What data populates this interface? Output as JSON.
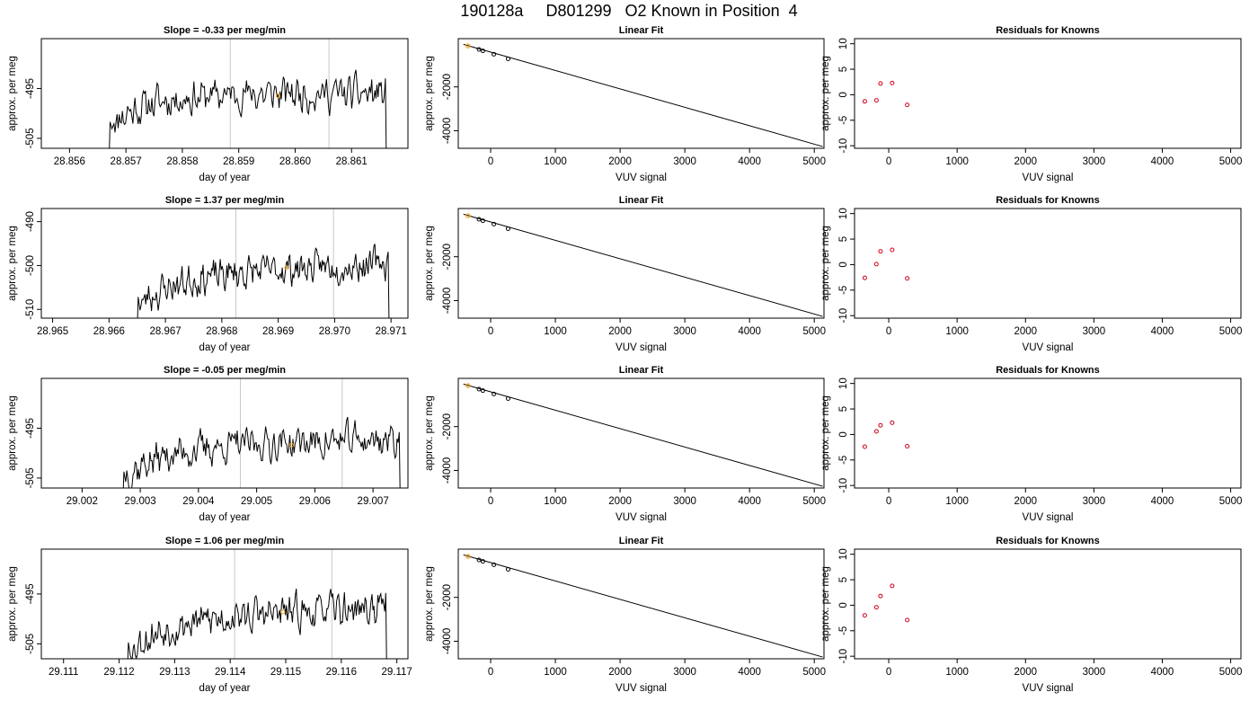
{
  "title": "190128a     D801299   O2 Known in Position  4",
  "colors": {
    "line": "#000000",
    "vline": "#c8c8c8",
    "highlight": "#f5a623",
    "residual": "#d0021b"
  },
  "rows": [
    {
      "time_panel": {
        "title": "Slope =  -0.33  per meg/min",
        "xlabel": "day of year",
        "ylabel": "approx. per meg",
        "xlim": [
          28.8555,
          28.862
        ],
        "ylim": [
          -507,
          -485
        ],
        "xticks": [
          28.856,
          28.857,
          28.858,
          28.859,
          28.86,
          28.861
        ],
        "xticklabels": [
          "28.856",
          "28.857",
          "28.858",
          "28.859",
          "28.860",
          "28.861"
        ],
        "yticks": [
          -495,
          -505
        ],
        "yticklabels": [
          "-495",
          "-505"
        ],
        "vlines": [
          28.85885,
          28.8606
        ],
        "start": 28.85675,
        "end": 28.8616,
        "level": -496,
        "amp": 2.6,
        "seed": 11,
        "marker": {
          "x": 28.8597,
          "y": -496.5
        }
      },
      "fit_panel": {
        "title": "Linear Fit",
        "xlabel": "VUV signal",
        "ylabel": "approx. per meg",
        "xlim": [
          -500,
          5150
        ],
        "ylim": [
          -4800,
          200
        ],
        "xticks": [
          0,
          1000,
          2000,
          3000,
          4000,
          5000
        ],
        "xticklabels": [
          "0",
          "1000",
          "2000",
          "3000",
          "4000",
          "5000"
        ],
        "yticks": [
          -2000,
          -4000
        ],
        "yticklabels": [
          "-2000",
          "-4000"
        ],
        "line": {
          "x": [
            -420,
            5130
          ],
          "y": [
            -60,
            -4720
          ]
        },
        "points": {
          "x": [
            -180,
            -120,
            50,
            270
          ],
          "y": [
            -290,
            -360,
            -510,
            -720
          ]
        },
        "highlight": {
          "x": -350,
          "y": -130
        }
      },
      "resid_panel": {
        "title": "Residuals for Knowns",
        "xlabel": "VUV signal",
        "ylabel": "approx. per meg",
        "xlim": [
          -500,
          5150
        ],
        "ylim": [
          -10.5,
          11
        ],
        "xticks": [
          0,
          1000,
          2000,
          3000,
          4000,
          5000
        ],
        "xticklabels": [
          "0",
          "1000",
          "2000",
          "3000",
          "4000",
          "5000"
        ],
        "yticks": [
          -10,
          -5,
          0,
          5,
          10
        ],
        "yticklabels": [
          "-10",
          "-5",
          "0",
          "5",
          "10"
        ],
        "points": {
          "x": [
            -350,
            -180,
            -120,
            50,
            270
          ],
          "y": [
            -1.3,
            -1.1,
            2.2,
            2.3,
            -2.0
          ]
        }
      }
    },
    {
      "time_panel": {
        "title": "Slope =  1.37  per meg/min",
        "xlabel": "day of year",
        "ylabel": "approx. per meg",
        "xlim": [
          28.9648,
          28.9713
        ],
        "ylim": [
          -512,
          -487
        ],
        "xticks": [
          28.965,
          28.966,
          28.967,
          28.968,
          28.969,
          28.97,
          28.971
        ],
        "xticklabels": [
          "28.965",
          "28.966",
          "28.967",
          "28.968",
          "28.969",
          "28.970",
          "28.971"
        ],
        "yticks": [
          -490,
          -500,
          -510
        ],
        "yticklabels": [
          "-490",
          "-500",
          "-510"
        ],
        "vlines": [
          28.96825,
          28.96998
        ],
        "start": 28.96655,
        "end": 28.97095,
        "level": -501,
        "amp": 2.8,
        "seed": 23,
        "trend": 3.2,
        "marker": {
          "x": 28.96915,
          "y": -500.5
        }
      },
      "fit_panel": {
        "title": "Linear Fit",
        "xlabel": "VUV signal",
        "ylabel": "approx. per meg",
        "xlim": [
          -500,
          5150
        ],
        "ylim": [
          -4800,
          200
        ],
        "xticks": [
          0,
          1000,
          2000,
          3000,
          4000,
          5000
        ],
        "xticklabels": [
          "0",
          "1000",
          "2000",
          "3000",
          "4000",
          "5000"
        ],
        "yticks": [
          -2000,
          -4000
        ],
        "yticklabels": [
          "-2000",
          "-4000"
        ],
        "line": {
          "x": [
            -420,
            5130
          ],
          "y": [
            -60,
            -4720
          ]
        },
        "points": {
          "x": [
            -180,
            -120,
            50,
            270
          ],
          "y": [
            -290,
            -360,
            -510,
            -720
          ]
        },
        "highlight": {
          "x": -350,
          "y": -130
        }
      },
      "resid_panel": {
        "title": "Residuals for Knowns",
        "xlabel": "VUV signal",
        "ylabel": "approx. per meg",
        "xlim": [
          -500,
          5150
        ],
        "ylim": [
          -10.5,
          11
        ],
        "xticks": [
          0,
          1000,
          2000,
          3000,
          4000,
          5000
        ],
        "xticklabels": [
          "0",
          "1000",
          "2000",
          "3000",
          "4000",
          "5000"
        ],
        "yticks": [
          -10,
          -5,
          0,
          5,
          10
        ],
        "yticklabels": [
          "-10",
          "-5",
          "0",
          "5",
          "10"
        ],
        "points": {
          "x": [
            -350,
            -180,
            -120,
            50,
            270
          ],
          "y": [
            -2.6,
            0.1,
            2.6,
            2.9,
            -2.7
          ]
        }
      }
    },
    {
      "time_panel": {
        "title": "Slope =  -0.05  per meg/min",
        "xlabel": "day of year",
        "ylabel": "approx. per meg",
        "xlim": [
          29.0013,
          29.0076
        ],
        "ylim": [
          -507,
          -485
        ],
        "xticks": [
          29.002,
          29.003,
          29.004,
          29.005,
          29.006,
          29.007
        ],
        "xticklabels": [
          "29.002",
          "29.003",
          "29.004",
          "29.005",
          "29.006",
          "29.007"
        ],
        "yticks": [
          -495,
          -505
        ],
        "yticklabels": [
          "-495",
          "-505"
        ],
        "vlines": [
          29.00472,
          29.00647
        ],
        "start": 29.00275,
        "end": 29.00745,
        "level": -498,
        "amp": 2.6,
        "seed": 37,
        "trend": 1.5,
        "marker": {
          "x": 29.0056,
          "y": -498.4
        }
      },
      "fit_panel": {
        "title": "Linear Fit",
        "xlabel": "VUV signal",
        "ylabel": "approx. per meg",
        "xlim": [
          -500,
          5150
        ],
        "ylim": [
          -4800,
          200
        ],
        "xticks": [
          0,
          1000,
          2000,
          3000,
          4000,
          5000
        ],
        "xticklabels": [
          "0",
          "1000",
          "2000",
          "3000",
          "4000",
          "5000"
        ],
        "yticks": [
          -2000,
          -4000
        ],
        "yticklabels": [
          "-2000",
          "-4000"
        ],
        "line": {
          "x": [
            -420,
            5130
          ],
          "y": [
            -60,
            -4720
          ]
        },
        "points": {
          "x": [
            -180,
            -120,
            50,
            270
          ],
          "y": [
            -290,
            -360,
            -510,
            -720
          ]
        },
        "highlight": {
          "x": -350,
          "y": -130
        }
      },
      "resid_panel": {
        "title": "Residuals for Knowns",
        "xlabel": "VUV signal",
        "ylabel": "approx. per meg",
        "xlim": [
          -500,
          5150
        ],
        "ylim": [
          -10.5,
          11
        ],
        "xticks": [
          0,
          1000,
          2000,
          3000,
          4000,
          5000
        ],
        "xticklabels": [
          "0",
          "1000",
          "2000",
          "3000",
          "4000",
          "5000"
        ],
        "yticks": [
          -10,
          -5,
          0,
          5,
          10
        ],
        "yticklabels": [
          "-10",
          "-5",
          "0",
          "5",
          "10"
        ],
        "points": {
          "x": [
            -350,
            -180,
            -120,
            50,
            270
          ],
          "y": [
            -2.4,
            0.6,
            1.8,
            2.3,
            -2.3
          ]
        }
      }
    },
    {
      "time_panel": {
        "title": "Slope =  1.06  per meg/min",
        "xlabel": "day of year",
        "ylabel": "approx. per meg",
        "xlim": [
          29.1106,
          29.1172
        ],
        "ylim": [
          -508,
          -486
        ],
        "xticks": [
          29.111,
          29.112,
          29.113,
          29.114,
          29.115,
          29.116,
          29.117
        ],
        "xticklabels": [
          "29.111",
          "29.112",
          "29.113",
          "29.114",
          "29.115",
          "29.116",
          "29.117"
        ],
        "yticks": [
          -495,
          -505
        ],
        "yticklabels": [
          "-495",
          "-505"
        ],
        "vlines": [
          29.11408,
          29.11583
        ],
        "start": 29.1122,
        "end": 29.1168,
        "level": -499,
        "amp": 2.6,
        "seed": 53,
        "trend": 2.6,
        "marker": {
          "x": 29.11495,
          "y": -498.6
        }
      },
      "fit_panel": {
        "title": "Linear Fit",
        "xlabel": "VUV signal",
        "ylabel": "approx. per meg",
        "xlim": [
          -500,
          5150
        ],
        "ylim": [
          -4800,
          200
        ],
        "xticks": [
          0,
          1000,
          2000,
          3000,
          4000,
          5000
        ],
        "xticklabels": [
          "0",
          "1000",
          "2000",
          "3000",
          "4000",
          "5000"
        ],
        "yticks": [
          -2000,
          -4000
        ],
        "yticklabels": [
          "-2000",
          "-4000"
        ],
        "line": {
          "x": [
            -420,
            5130
          ],
          "y": [
            -60,
            -4720
          ]
        },
        "points": {
          "x": [
            -180,
            -120,
            50,
            270
          ],
          "y": [
            -290,
            -360,
            -510,
            -720
          ]
        },
        "highlight": {
          "x": -350,
          "y": -130
        }
      },
      "resid_panel": {
        "title": "Residuals for Knowns",
        "xlabel": "VUV signal",
        "ylabel": "approx. per meg",
        "xlim": [
          -500,
          5150
        ],
        "ylim": [
          -10.5,
          11
        ],
        "xticks": [
          0,
          1000,
          2000,
          3000,
          4000,
          5000
        ],
        "xticklabels": [
          "0",
          "1000",
          "2000",
          "3000",
          "4000",
          "5000"
        ],
        "yticks": [
          -10,
          -5,
          0,
          5,
          10
        ],
        "yticklabels": [
          "-10",
          "-5",
          "0",
          "5",
          "10"
        ],
        "points": {
          "x": [
            -350,
            -180,
            -120,
            50,
            270
          ],
          "y": [
            -2.0,
            -0.4,
            1.8,
            3.8,
            -2.9
          ]
        }
      }
    }
  ],
  "chart_data": [
    {
      "type": "line",
      "title": "Slope =  -0.33  per meg/min",
      "xlabel": "day of year",
      "ylabel": "approx. per meg",
      "xlim": [
        28.8555,
        28.862
      ],
      "ylim": [
        -507,
        -485
      ],
      "grid": false
    },
    {
      "type": "scatter",
      "title": "Linear Fit",
      "xlabel": "VUV signal",
      "ylabel": "approx. per meg",
      "x": [
        -350,
        -180,
        -120,
        50,
        270
      ],
      "y": [
        -130,
        -290,
        -360,
        -510,
        -720
      ],
      "xlim": [
        -500,
        5150
      ],
      "ylim": [
        -4800,
        200
      ]
    },
    {
      "type": "scatter",
      "title": "Residuals for Knowns",
      "xlabel": "VUV signal",
      "ylabel": "approx. per meg",
      "x": [
        -350,
        -180,
        -120,
        50,
        270
      ],
      "y": [
        -1.3,
        -1.1,
        2.2,
        2.3,
        -2.0
      ],
      "xlim": [
        -500,
        5150
      ],
      "ylim": [
        -10.5,
        11
      ]
    },
    {
      "type": "line",
      "title": "Slope =  1.37  per meg/min",
      "xlabel": "day of year",
      "ylabel": "approx. per meg",
      "xlim": [
        28.9648,
        28.9713
      ],
      "ylim": [
        -512,
        -487
      ],
      "grid": false
    },
    {
      "type": "scatter",
      "title": "Linear Fit",
      "xlabel": "VUV signal",
      "ylabel": "approx. per meg",
      "x": [
        -350,
        -180,
        -120,
        50,
        270
      ],
      "y": [
        -130,
        -290,
        -360,
        -510,
        -720
      ],
      "xlim": [
        -500,
        5150
      ],
      "ylim": [
        -4800,
        200
      ]
    },
    {
      "type": "scatter",
      "title": "Residuals for Knowns",
      "xlabel": "VUV signal",
      "ylabel": "approx. per meg",
      "x": [
        -350,
        -180,
        -120,
        50,
        270
      ],
      "y": [
        -2.6,
        0.1,
        2.6,
        2.9,
        -2.7
      ],
      "xlim": [
        -500,
        5150
      ],
      "ylim": [
        -10.5,
        11
      ]
    },
    {
      "type": "line",
      "title": "Slope =  -0.05  per meg/min",
      "xlabel": "day of year",
      "ylabel": "approx. per meg",
      "xlim": [
        29.0013,
        29.0076
      ],
      "ylim": [
        -507,
        -485
      ],
      "grid": false
    },
    {
      "type": "scatter",
      "title": "Linear Fit",
      "xlabel": "VUV signal",
      "ylabel": "approx. per meg",
      "x": [
        -350,
        -180,
        -120,
        50,
        270
      ],
      "y": [
        -130,
        -290,
        -360,
        -510,
        -720
      ],
      "xlim": [
        -500,
        5150
      ],
      "ylim": [
        -4800,
        200
      ]
    },
    {
      "type": "scatter",
      "title": "Residuals for Knowns",
      "xlabel": "VUV signal",
      "ylabel": "approx. per meg",
      "x": [
        -350,
        -180,
        -120,
        50,
        270
      ],
      "y": [
        -2.4,
        0.6,
        1.8,
        2.3,
        -2.3
      ],
      "xlim": [
        -500,
        5150
      ],
      "ylim": [
        -10.5,
        11
      ]
    },
    {
      "type": "line",
      "title": "Slope =  1.06  per meg/min",
      "xlabel": "day of year",
      "ylabel": "approx. per meg",
      "xlim": [
        29.1106,
        29.1172
      ],
      "ylim": [
        -508,
        -486
      ],
      "grid": false
    },
    {
      "type": "scatter",
      "title": "Linear Fit",
      "xlabel": "VUV signal",
      "ylabel": "approx. per meg",
      "x": [
        -350,
        -180,
        -120,
        50,
        270
      ],
      "y": [
        -130,
        -290,
        -360,
        -510,
        -720
      ],
      "xlim": [
        -500,
        5150
      ],
      "ylim": [
        -4800,
        200
      ]
    },
    {
      "type": "scatter",
      "title": "Residuals for Knowns",
      "xlabel": "VUV signal",
      "ylabel": "approx. per meg",
      "x": [
        -350,
        -180,
        -120,
        50,
        270
      ],
      "y": [
        -2.0,
        -0.4,
        1.8,
        3.8,
        -2.9
      ],
      "xlim": [
        -500,
        5150
      ],
      "ylim": [
        -10.5,
        11
      ]
    }
  ]
}
